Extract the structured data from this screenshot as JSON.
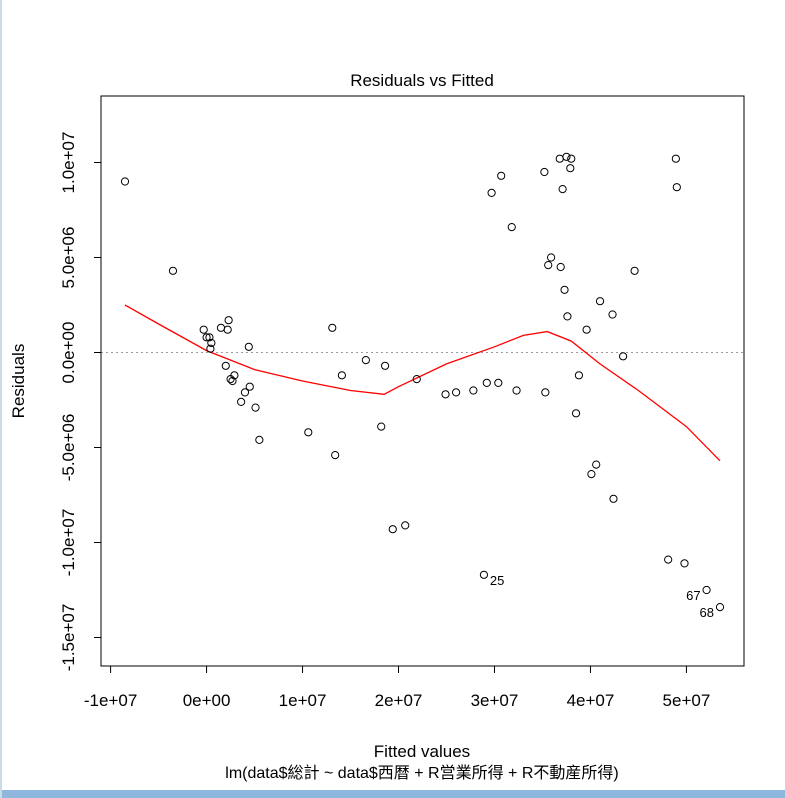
{
  "chart_data": {
    "type": "scatter",
    "title": "Residuals vs Fitted",
    "xlabel": "Fitted values",
    "ylabel": "Residuals",
    "subtitle": "lm(data$総計 ~ data$西暦 + R営業所得 + R不動産所得)",
    "xlim": [
      -11000000,
      56000000
    ],
    "ylim": [
      -16500000,
      13500000
    ],
    "x_ticks": [
      {
        "value": -10000000,
        "label": "-1e+07"
      },
      {
        "value": 0,
        "label": "0e+00"
      },
      {
        "value": 10000000,
        "label": "1e+07"
      },
      {
        "value": 20000000,
        "label": "2e+07"
      },
      {
        "value": 30000000,
        "label": "3e+07"
      },
      {
        "value": 40000000,
        "label": "4e+07"
      },
      {
        "value": 50000000,
        "label": "5e+07"
      }
    ],
    "y_ticks": [
      {
        "value": -15000000,
        "label": "-1.5e+07"
      },
      {
        "value": -10000000,
        "label": "-1.0e+07"
      },
      {
        "value": -5000000,
        "label": "-5.0e+06"
      },
      {
        "value": 0,
        "label": "0.0e+00"
      },
      {
        "value": 5000000,
        "label": "5.0e+06"
      },
      {
        "value": 10000000,
        "label": "1.0e+07"
      }
    ],
    "points": [
      {
        "x": -8500000,
        "y": 9000000
      },
      {
        "x": -3500000,
        "y": 4300000
      },
      {
        "x": -300000,
        "y": 1200000
      },
      {
        "x": 0,
        "y": 800000
      },
      {
        "x": 300000,
        "y": 800000
      },
      {
        "x": 400000,
        "y": 200000
      },
      {
        "x": 500000,
        "y": 500000
      },
      {
        "x": 1500000,
        "y": 1300000
      },
      {
        "x": 2000000,
        "y": -700000
      },
      {
        "x": 2200000,
        "y": 1200000
      },
      {
        "x": 2300000,
        "y": 1700000
      },
      {
        "x": 2500000,
        "y": -1400000
      },
      {
        "x": 2700000,
        "y": -1500000
      },
      {
        "x": 2900000,
        "y": -1200000
      },
      {
        "x": 3600000,
        "y": -2600000
      },
      {
        "x": 4000000,
        "y": -2100000
      },
      {
        "x": 4400000,
        "y": 300000
      },
      {
        "x": 4500000,
        "y": -1800000
      },
      {
        "x": 5100000,
        "y": -2900000
      },
      {
        "x": 5500000,
        "y": -4600000
      },
      {
        "x": 10600000,
        "y": -4200000
      },
      {
        "x": 13100000,
        "y": 1300000
      },
      {
        "x": 13400000,
        "y": -5400000
      },
      {
        "x": 14100000,
        "y": -1200000
      },
      {
        "x": 16600000,
        "y": -400000
      },
      {
        "x": 18200000,
        "y": -3900000
      },
      {
        "x": 18600000,
        "y": -700000
      },
      {
        "x": 19400000,
        "y": -9300000
      },
      {
        "x": 20700000,
        "y": -9100000
      },
      {
        "x": 21900000,
        "y": -1400000
      },
      {
        "x": 24900000,
        "y": -2200000
      },
      {
        "x": 26000000,
        "y": -2100000
      },
      {
        "x": 27800000,
        "y": -2000000
      },
      {
        "x": 28900000,
        "y": -11700000
      },
      {
        "x": 29200000,
        "y": -1600000
      },
      {
        "x": 29700000,
        "y": 8400000
      },
      {
        "x": 30400000,
        "y": -1600000
      },
      {
        "x": 30700000,
        "y": 9300000
      },
      {
        "x": 31800000,
        "y": 6600000
      },
      {
        "x": 32300000,
        "y": -2000000
      },
      {
        "x": 35200000,
        "y": 9500000
      },
      {
        "x": 35300000,
        "y": -2100000
      },
      {
        "x": 35600000,
        "y": 4600000
      },
      {
        "x": 35900000,
        "y": 5000000
      },
      {
        "x": 36800000,
        "y": 10200000
      },
      {
        "x": 36900000,
        "y": 4500000
      },
      {
        "x": 37100000,
        "y": 8600000
      },
      {
        "x": 37300000,
        "y": 3300000
      },
      {
        "x": 37500000,
        "y": 10300000
      },
      {
        "x": 37600000,
        "y": 1900000
      },
      {
        "x": 37900000,
        "y": 9700000
      },
      {
        "x": 38000000,
        "y": 10200000
      },
      {
        "x": 38500000,
        "y": -3200000
      },
      {
        "x": 38800000,
        "y": -1200000
      },
      {
        "x": 39600000,
        "y": 1200000
      },
      {
        "x": 40100000,
        "y": -6400000
      },
      {
        "x": 40600000,
        "y": -5900000
      },
      {
        "x": 41000000,
        "y": 2700000
      },
      {
        "x": 42300000,
        "y": 2000000
      },
      {
        "x": 42400000,
        "y": -7700000
      },
      {
        "x": 43400000,
        "y": -200000
      },
      {
        "x": 44600000,
        "y": 4300000
      },
      {
        "x": 48100000,
        "y": -10900000
      },
      {
        "x": 48900000,
        "y": 10200000
      },
      {
        "x": 49000000,
        "y": 8700000
      },
      {
        "x": 49800000,
        "y": -11100000
      },
      {
        "x": 52100000,
        "y": -12500000
      },
      {
        "x": 53500000,
        "y": -13400000
      }
    ],
    "labeled_points": [
      {
        "label": "25",
        "x": 28900000,
        "y": -11700000
      },
      {
        "label": "67",
        "x": 52100000,
        "y": -12500000
      },
      {
        "label": "68",
        "x": 53500000,
        "y": -13400000
      }
    ],
    "smooth_line": {
      "x": [
        -8500000,
        -5000000,
        0,
        5000000,
        10000000,
        15000000,
        18500000,
        20000000,
        25000000,
        30000000,
        33000000,
        35500000,
        38000000,
        41000000,
        45000000,
        50000000,
        53500000
      ],
      "y": [
        2500000,
        1500000,
        100000,
        -900000,
        -1500000,
        -2000000,
        -2200000,
        -1800000,
        -600000,
        300000,
        900000,
        1100000,
        600000,
        -600000,
        -2000000,
        -3900000,
        -5700000
      ]
    },
    "reference_line_y": 0,
    "colors": {
      "points": "#000000",
      "smooth": "#ff0000",
      "reference": "#999999"
    }
  }
}
